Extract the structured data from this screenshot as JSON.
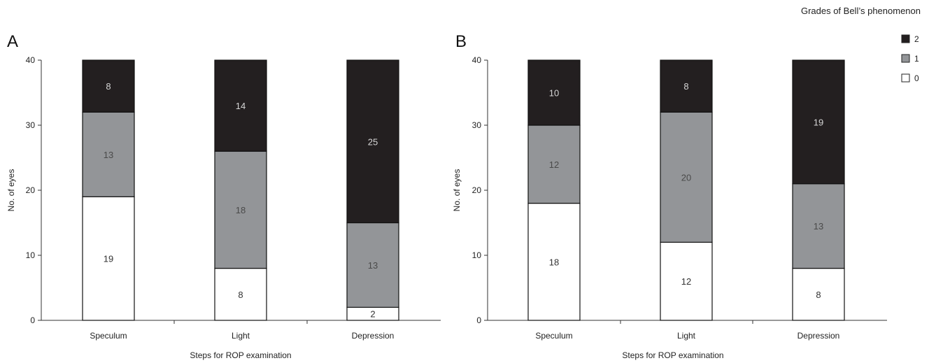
{
  "legend": {
    "title": "Grades of Bell’s phenomenon",
    "items": [
      {
        "label": "2",
        "color": "#231f20"
      },
      {
        "label": "1",
        "color": "#939598"
      },
      {
        "label": "0",
        "color": "#ffffff"
      }
    ]
  },
  "chart_data": [
    {
      "type": "bar",
      "stacked": true,
      "panel_label": "A",
      "title": "",
      "xlabel": "Steps for ROP examination",
      "ylabel": "No. of eyes",
      "categories": [
        "Speculum",
        "Light",
        "Depression"
      ],
      "ylim": [
        0,
        40
      ],
      "yticks": [
        0,
        10,
        20,
        30,
        40
      ],
      "series": [
        {
          "name": "0",
          "values": [
            19,
            8,
            2
          ],
          "color": "#ffffff"
        },
        {
          "name": "1",
          "values": [
            13,
            18,
            13
          ],
          "color": "#939598"
        },
        {
          "name": "2",
          "values": [
            8,
            14,
            25
          ],
          "color": "#231f20"
        }
      ]
    },
    {
      "type": "bar",
      "stacked": true,
      "panel_label": "B",
      "title": "",
      "xlabel": "Steps for ROP examination",
      "ylabel": "No. of eyes",
      "categories": [
        "Speculum",
        "Light",
        "Depression"
      ],
      "ylim": [
        0,
        40
      ],
      "yticks": [
        0,
        10,
        20,
        30,
        40
      ],
      "series": [
        {
          "name": "0",
          "values": [
            18,
            12,
            8
          ],
          "color": "#ffffff"
        },
        {
          "name": "1",
          "values": [
            12,
            20,
            13
          ],
          "color": "#939598"
        },
        {
          "name": "2",
          "values": [
            10,
            8,
            19
          ],
          "color": "#231f20"
        }
      ]
    }
  ]
}
